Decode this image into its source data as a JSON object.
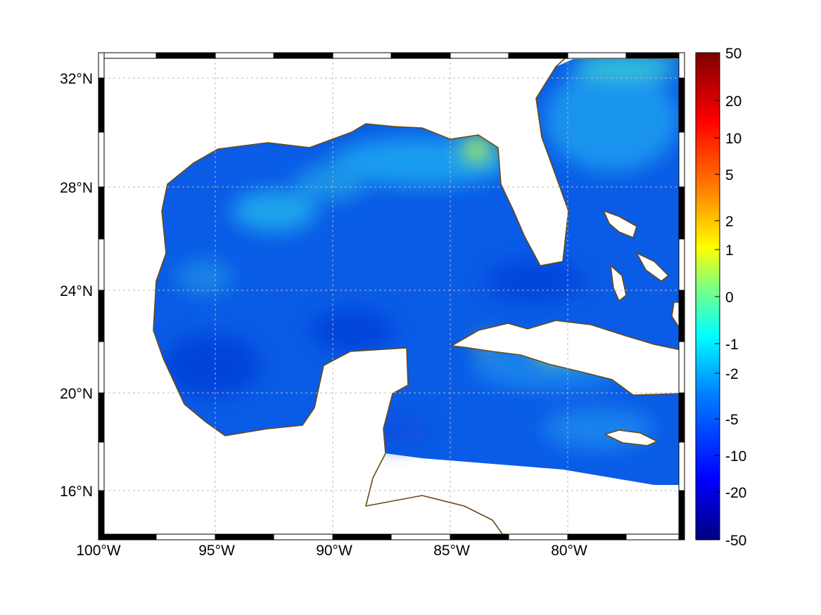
{
  "map": {
    "lat_ticks": [
      "32°N",
      "28°N",
      "24°N",
      "20°N",
      "16°N"
    ],
    "lon_ticks": [
      "100°W",
      "95°W",
      "90°W",
      "85°W",
      "80°W"
    ],
    "extent": {
      "lon_min": -100,
      "lon_max": -75.2,
      "lat_min": 14.3,
      "lat_max": 32.9
    },
    "colors": {
      "coastline": "#6b4a10",
      "land": "#ffffff",
      "grid": "#b8b8b8",
      "frame": "#000000"
    }
  },
  "colorbar": {
    "tick_labels": [
      "50",
      "20",
      "10",
      "5",
      "2",
      "1",
      "0",
      "-1",
      "-2",
      "-5",
      "-10",
      "-20",
      "-50"
    ],
    "colormap": "jet",
    "stops": [
      "#00007f",
      "#0000ff",
      "#0080ff",
      "#00ffff",
      "#80ff80",
      "#ffff00",
      "#ff8000",
      "#ff0000",
      "#7f0000"
    ]
  }
}
